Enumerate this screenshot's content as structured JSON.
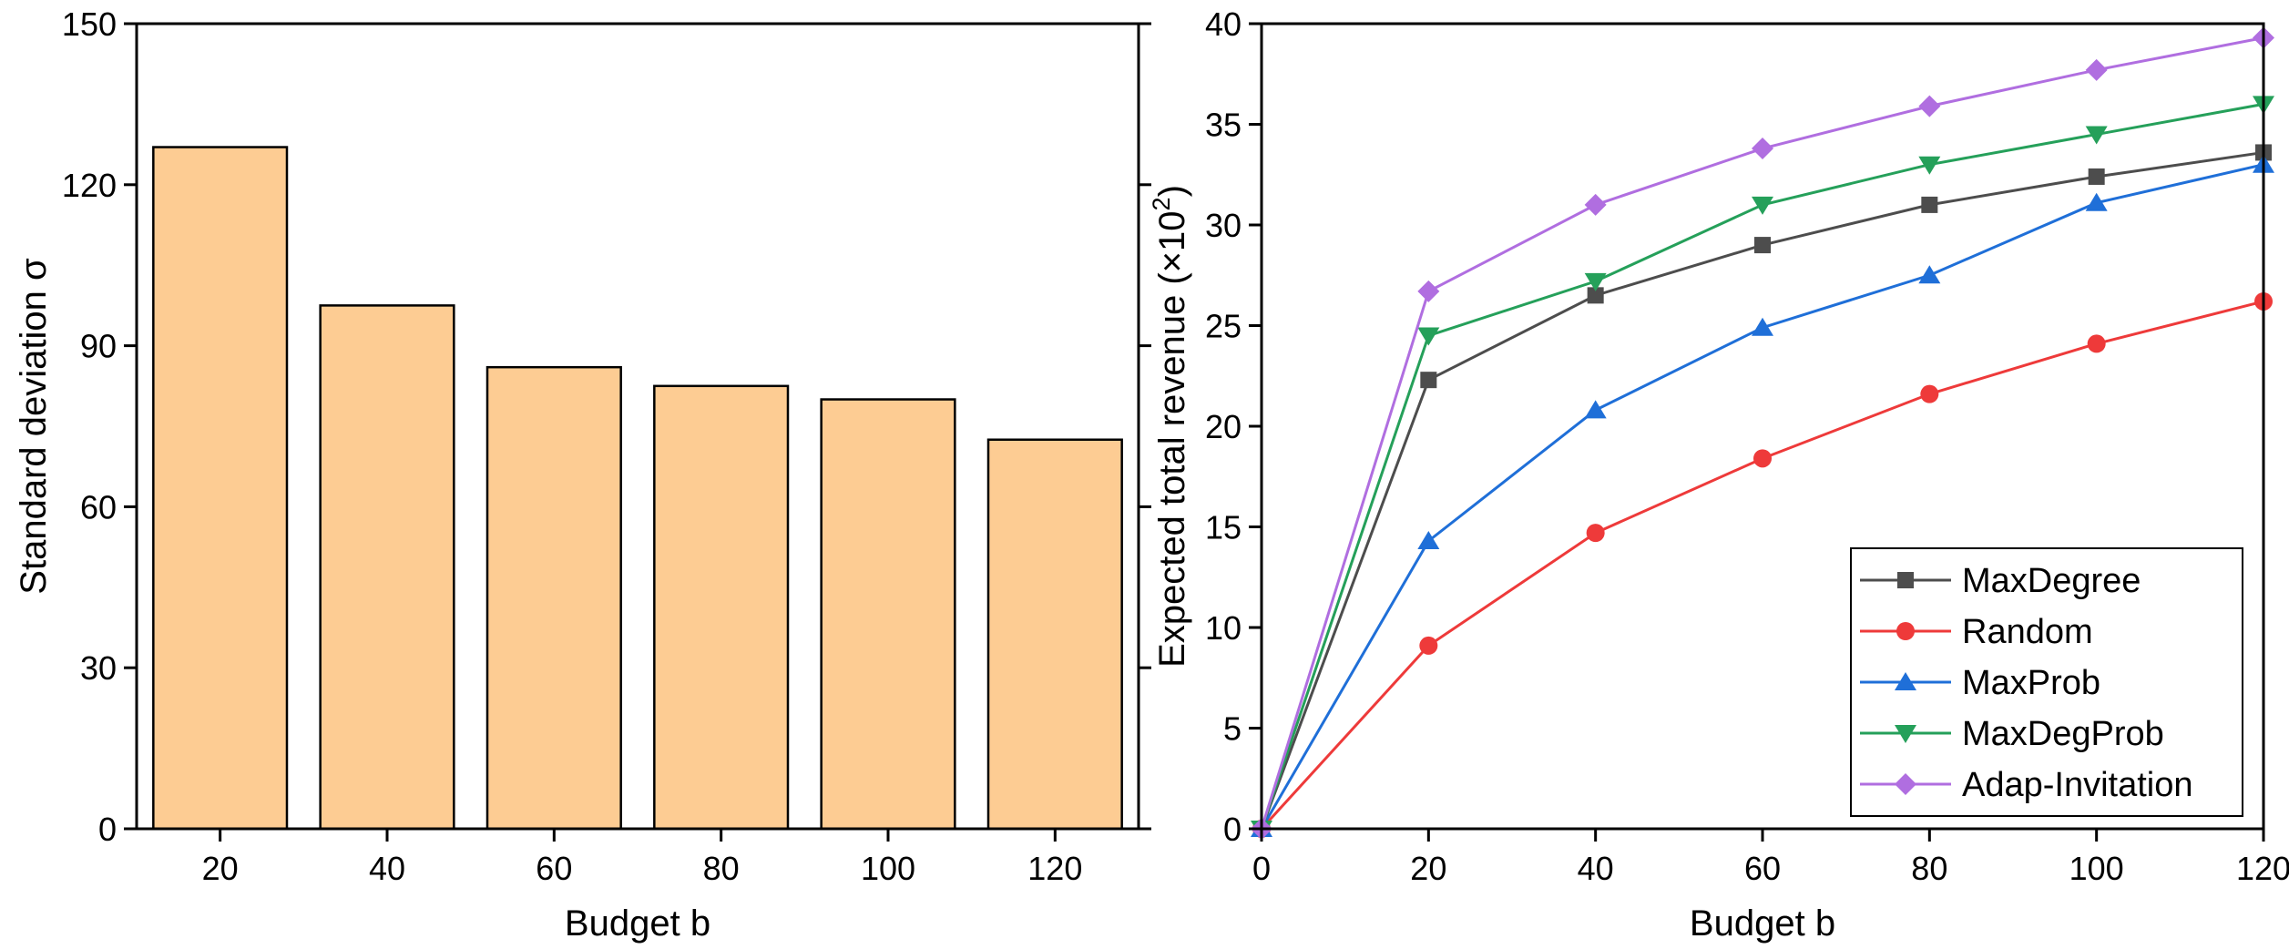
{
  "chart_data": [
    {
      "type": "bar",
      "categories": [
        "20",
        "40",
        "60",
        "80",
        "100",
        "120"
      ],
      "values": [
        127,
        97.5,
        86,
        82.5,
        80,
        72.5
      ],
      "xlabel": "Budget b",
      "ylabel": "Standard deviation σ",
      "ylim": [
        0,
        150
      ],
      "yticks": [
        "0",
        "30",
        "60",
        "90",
        "120",
        "150"
      ],
      "bar_color": "#fdcc93",
      "grid": false
    },
    {
      "type": "line",
      "x": [
        0,
        20,
        40,
        60,
        80,
        100,
        120
      ],
      "xticks": [
        "0",
        "20",
        "40",
        "60",
        "80",
        "100",
        "120"
      ],
      "xlim": [
        0,
        120
      ],
      "ylim": [
        0,
        40
      ],
      "yticks": [
        "0",
        "5",
        "10",
        "15",
        "20",
        "25",
        "30",
        "35",
        "40"
      ],
      "xlabel": "Budget b",
      "ylabel_main": "Expected total revenue (×10",
      "ylabel_sup": "2",
      "ylabel_end": ")",
      "legend_position": "bottom-right",
      "grid": false,
      "series": [
        {
          "name": "MaxDegree",
          "color": "#4d4d4d",
          "marker": "square",
          "values": [
            0,
            22.3,
            26.5,
            29.0,
            31.0,
            32.4,
            33.6
          ]
        },
        {
          "name": "Random",
          "color": "#ee3a3a",
          "marker": "circle",
          "values": [
            0,
            9.1,
            14.7,
            18.4,
            21.6,
            24.1,
            26.2
          ]
        },
        {
          "name": "MaxProb",
          "color": "#1f6fd8",
          "marker": "triangle-up",
          "values": [
            0,
            14.3,
            20.8,
            24.9,
            27.5,
            31.1,
            33.0
          ]
        },
        {
          "name": "MaxDegProb",
          "color": "#25a05a",
          "marker": "triangle-down",
          "values": [
            0,
            24.5,
            27.2,
            31.0,
            33.0,
            34.5,
            36.0
          ]
        },
        {
          "name": "Adap-Invitation",
          "color": "#b06ee0",
          "marker": "diamond",
          "values": [
            0,
            26.7,
            31.0,
            33.8,
            35.9,
            37.7,
            39.3
          ]
        }
      ]
    }
  ]
}
